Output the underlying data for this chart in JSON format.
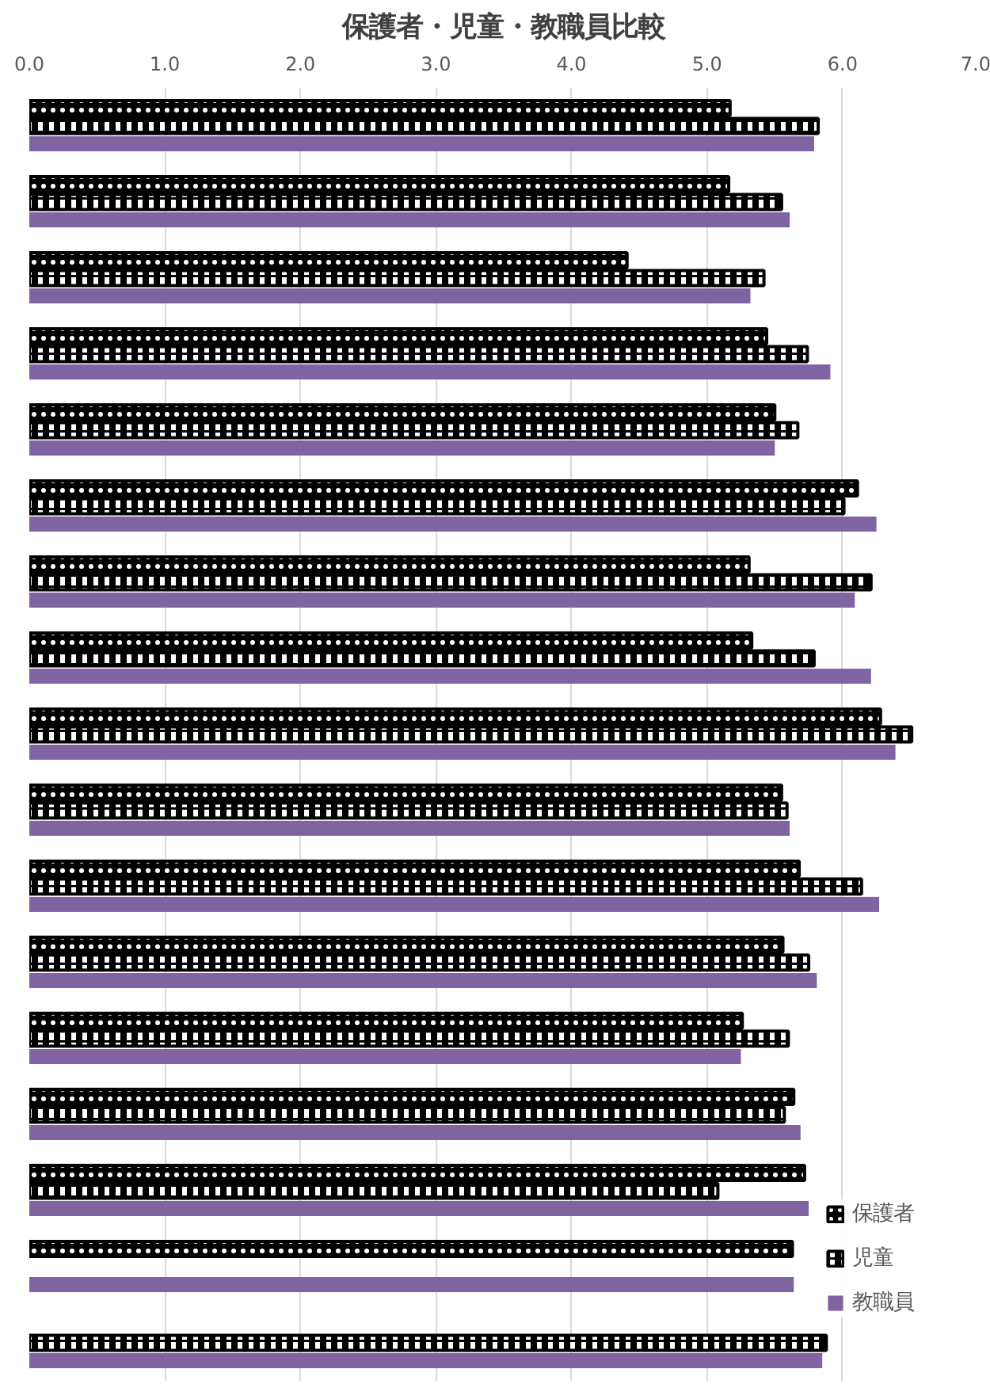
{
  "chart_data": {
    "type": "bar",
    "orientation": "horizontal",
    "title": "保護者・児童・教職員比較",
    "categories": [
      null,
      null,
      null,
      null,
      null,
      null,
      null,
      null,
      null,
      null,
      null,
      null,
      null,
      null,
      null,
      null,
      null
    ],
    "series": [
      {
        "name": "保護者",
        "color": "#000000",
        "values": [
          5.17,
          5.16,
          4.41,
          5.44,
          5.5,
          6.11,
          5.31,
          5.33,
          6.28,
          5.55,
          5.68,
          5.56,
          5.26,
          5.64,
          5.72,
          5.63,
          null
        ]
      },
      {
        "name": "児童",
        "color": "#000000",
        "values": [
          5.82,
          5.55,
          5.42,
          5.74,
          5.67,
          6.01,
          6.21,
          5.79,
          6.51,
          5.59,
          6.14,
          5.75,
          5.6,
          5.57,
          5.08,
          null,
          5.88
        ]
      },
      {
        "name": "教職員",
        "color": "#8064a2",
        "values": [
          5.79,
          5.61,
          5.32,
          5.91,
          5.5,
          6.25,
          6.09,
          6.21,
          6.39,
          5.61,
          6.27,
          5.81,
          5.25,
          5.69,
          5.75,
          5.64,
          5.85
        ]
      }
    ],
    "xlim": [
      0,
      7
    ],
    "xticks": [
      {
        "value": 0,
        "label": "0.0"
      },
      {
        "value": 1,
        "label": "1.0"
      },
      {
        "value": 2,
        "label": "2.0"
      },
      {
        "value": 3,
        "label": "3.0"
      },
      {
        "value": 4,
        "label": "4.0"
      },
      {
        "value": 5,
        "label": "5.0"
      },
      {
        "value": 6,
        "label": "6.0"
      },
      {
        "value": 7,
        "label": "7.0"
      }
    ],
    "grid": "x",
    "legend": "bottom right",
    "tick_labels": "x"
  }
}
